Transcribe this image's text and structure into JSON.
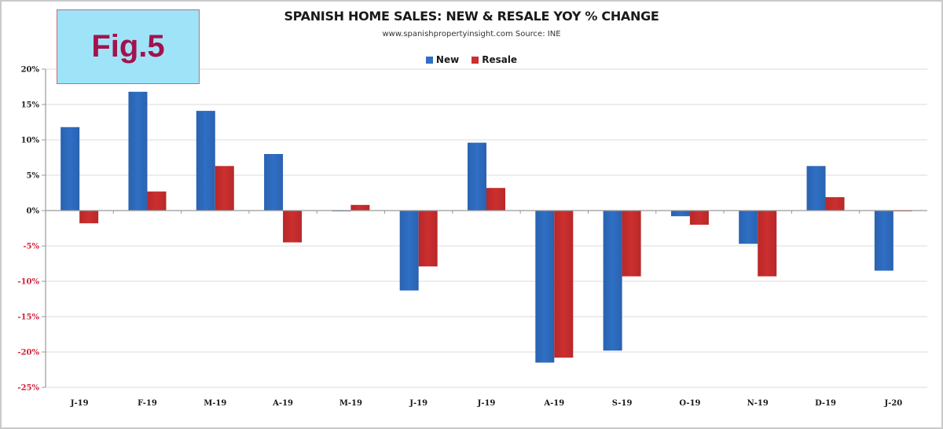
{
  "figure_label": "Fig.5",
  "colors": {
    "new": "#2f6fc4",
    "resale": "#cc2f2f",
    "positive_tick": "#222222",
    "negative_tick": "#d0203a",
    "grid": "#e2e2e2",
    "figbox_fill": "#9fe3f8",
    "figbox_text": "#a3124d"
  },
  "chart_data": {
    "type": "bar",
    "title": "SPANISH HOME SALES: NEW & RESALE YOY % CHANGE",
    "subtitle": "www.spanishpropertyinsight.com Source:  INE",
    "xlabel": "",
    "ylabel": "",
    "legend_position": "top-center",
    "grid": true,
    "ylim": [
      -25,
      20
    ],
    "yticks": [
      20,
      15,
      10,
      5,
      0,
      -5,
      -10,
      -15,
      -20,
      -25
    ],
    "ytick_labels": [
      "20%",
      "15%",
      "10%",
      "5%",
      "0%",
      "-5%",
      "-10%",
      "-15%",
      "-20%",
      "-25%"
    ],
    "categories": [
      "J-19",
      "F-19",
      "M-19",
      "A-19",
      "M-19",
      "J-19",
      "J-19",
      "A-19",
      "S-19",
      "O-19",
      "N-19",
      "D-19",
      "J-20"
    ],
    "series": [
      {
        "name": "New",
        "values": [
          11.8,
          16.8,
          14.1,
          8.0,
          -0.1,
          -11.3,
          9.6,
          -21.5,
          -19.8,
          -0.8,
          -4.7,
          6.3,
          -8.5
        ]
      },
      {
        "name": "Resale",
        "values": [
          -1.8,
          2.7,
          6.3,
          -4.5,
          0.8,
          -7.9,
          3.2,
          -20.8,
          -9.3,
          -2.0,
          -9.3,
          1.9,
          -0.1
        ]
      }
    ]
  }
}
